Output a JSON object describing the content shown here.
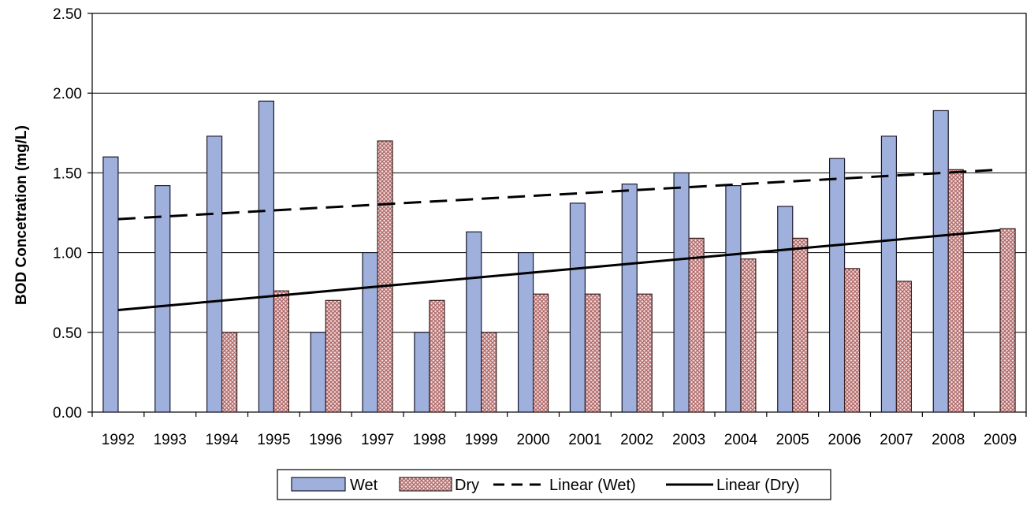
{
  "chart_data": {
    "type": "bar",
    "title": "",
    "xlabel": "",
    "ylabel": "BOD Concetration (mg/L)",
    "ylim": [
      0,
      2.5
    ],
    "yticks": [
      "0.00",
      "0.50",
      "1.00",
      "1.50",
      "2.00",
      "2.50"
    ],
    "ytick_values": [
      0,
      0.5,
      1.0,
      1.5,
      2.0,
      2.5
    ],
    "grid": true,
    "legend_position": "bottom",
    "categories": [
      "1992",
      "1993",
      "1994",
      "1995",
      "1996",
      "1997",
      "1998",
      "1999",
      "2000",
      "2001",
      "2002",
      "2003",
      "2004",
      "2005",
      "2006",
      "2007",
      "2008",
      "2009"
    ],
    "series": [
      {
        "name": "Wet",
        "values": [
          1.6,
          1.42,
          1.73,
          1.95,
          0.5,
          1.0,
          0.5,
          1.13,
          1.0,
          1.31,
          1.43,
          1.5,
          1.42,
          1.29,
          1.59,
          1.73,
          1.89,
          null
        ]
      },
      {
        "name": "Dry",
        "values": [
          null,
          null,
          0.5,
          0.76,
          0.7,
          1.7,
          0.7,
          0.5,
          0.74,
          0.74,
          0.74,
          1.09,
          0.96,
          1.09,
          0.9,
          0.82,
          1.52,
          1.15
        ]
      }
    ],
    "trendlines": [
      {
        "name": "Linear (Wet)",
        "start": [
          1992,
          1.21
        ],
        "end": [
          2009,
          1.52
        ],
        "style": "dashed"
      },
      {
        "name": "Linear (Dry)",
        "start": [
          1992,
          0.64
        ],
        "end": [
          2009,
          1.14
        ],
        "style": "solid"
      }
    ],
    "colors": {
      "wet": "#9fb0dc",
      "wet_stroke": "#1a1a2e",
      "dry": "#c08585",
      "dry_stroke": "#3a1f1f",
      "grid": "#000000"
    }
  }
}
